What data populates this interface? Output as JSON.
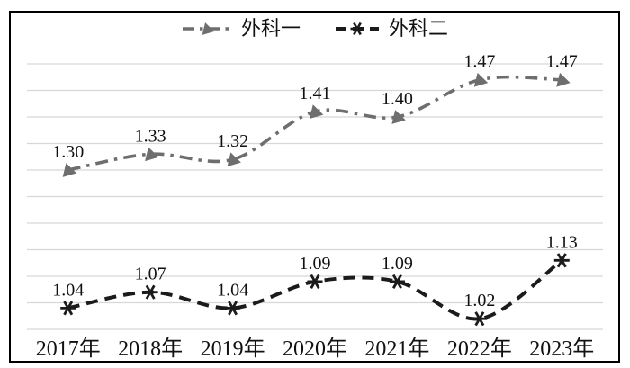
{
  "colors": {
    "series1": "#6e6e6e",
    "series2": "#1b1b1b",
    "gridline": "#d7d7d7",
    "frame_border": "#000000",
    "background": "#ffffff",
    "text": "#111111"
  },
  "legend": {
    "position": "top-center",
    "items": [
      {
        "label": "外科一"
      },
      {
        "label": "外科二"
      }
    ]
  },
  "chart_data": {
    "type": "line",
    "title": "",
    "xlabel": "",
    "ylabel": "",
    "categories": [
      "2017年",
      "2018年",
      "2019年",
      "2020年",
      "2021年",
      "2022年",
      "2023年"
    ],
    "series": [
      {
        "name": "外科一",
        "values": [
          1.3,
          1.33,
          1.32,
          1.41,
          1.4,
          1.47,
          1.47
        ],
        "labels": [
          "1.30",
          "1.33",
          "1.32",
          "1.41",
          "1.40",
          "1.47",
          "1.47"
        ],
        "color": "#6e6e6e",
        "line_style": "dash-dot",
        "marker": "triangle"
      },
      {
        "name": "外科二",
        "values": [
          1.04,
          1.07,
          1.04,
          1.09,
          1.09,
          1.02,
          1.13
        ],
        "labels": [
          "1.04",
          "1.07",
          "1.04",
          "1.09",
          "1.09",
          "1.02",
          "1.13"
        ],
        "color": "#1b1b1b",
        "line_style": "dash",
        "marker": "asterisk"
      }
    ],
    "ylim": [
      1.0,
      1.5
    ],
    "gridline_step": 0.05,
    "grid": "horizontal",
    "y_axis_labels_visible": false,
    "legend_position": "top",
    "data_labels": "above"
  }
}
